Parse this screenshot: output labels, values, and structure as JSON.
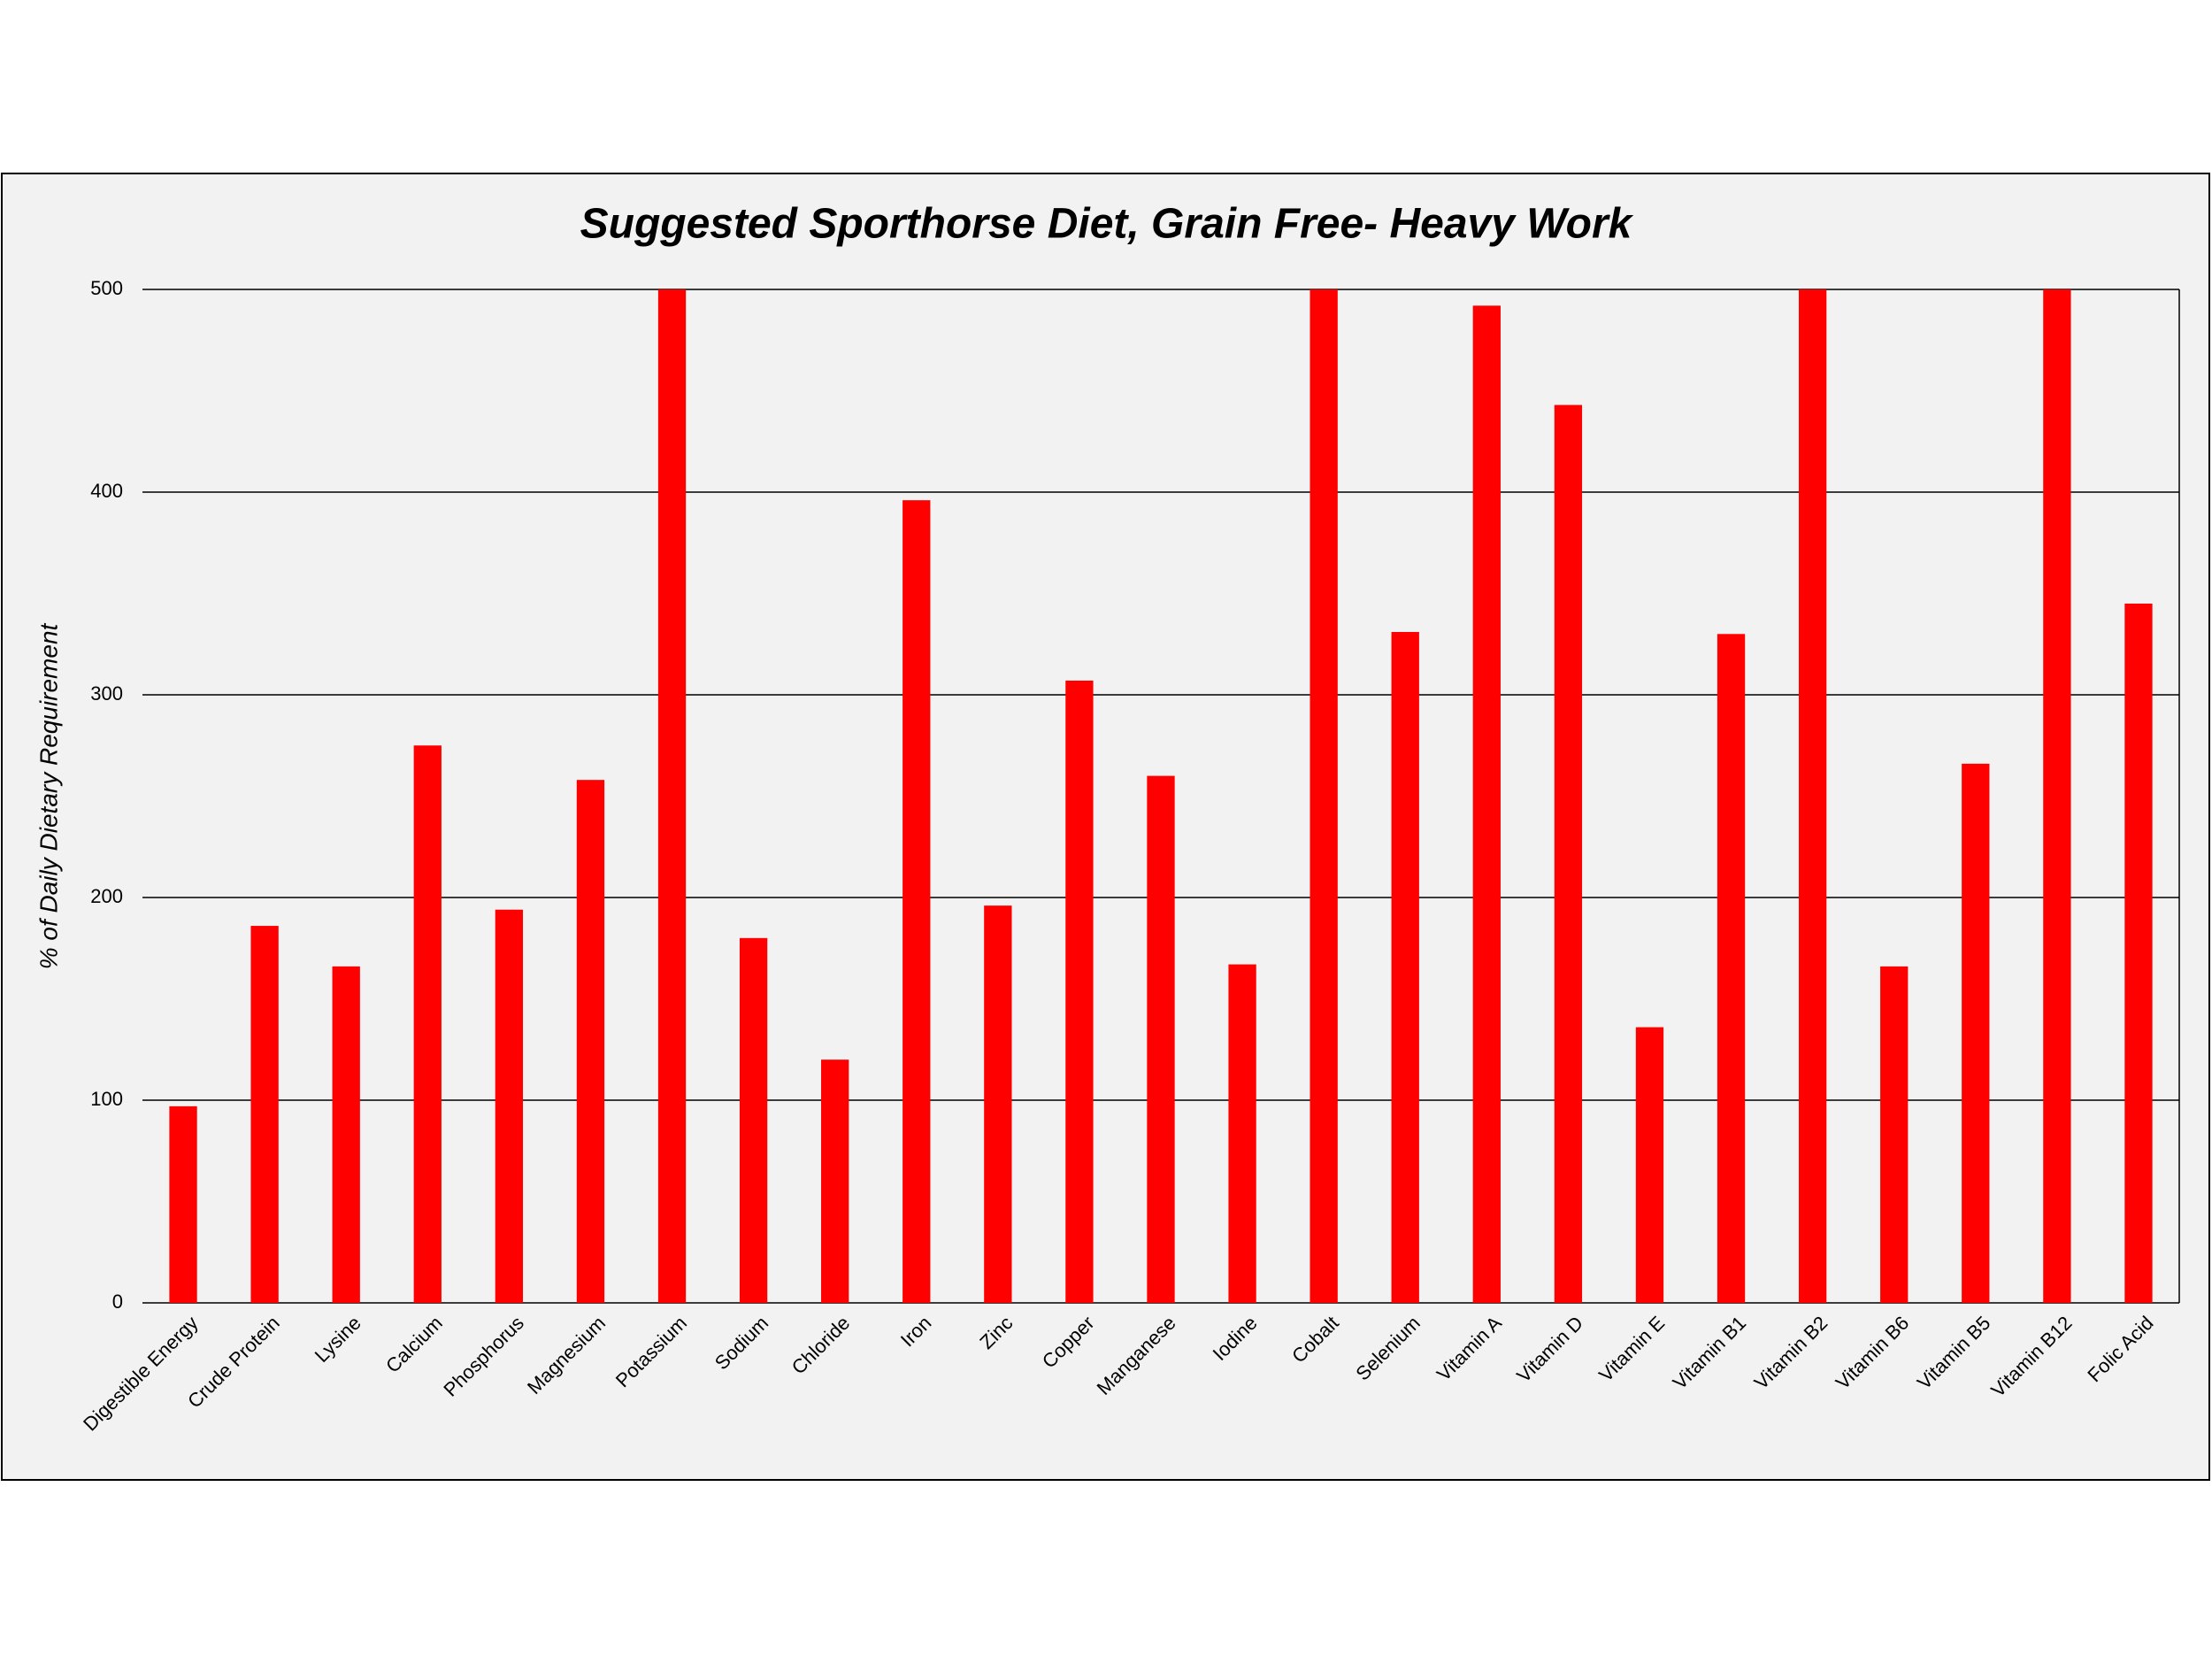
{
  "chart_data": {
    "type": "bar",
    "title": "Suggested Sporthorse Diet, Grain Free- Heavy Work",
    "y_label": "% of Daily Dietary Requirement",
    "categories": [
      "Digestible Energy",
      "Crude Protein",
      "Lysine",
      "Calcium",
      "Phosphorus",
      "Magnesium",
      "Potassium",
      "Sodium",
      "Chloride",
      "Iron",
      "Zinc",
      "Copper",
      "Manganese",
      "Iodine",
      "Cobalt",
      "Selenium",
      "Vitamin A",
      "Vitamin D",
      "Vitamin E",
      "Vitamin B1",
      "Vitamin B2",
      "Vitamin B6",
      "Vitamin B5",
      "Vitamin B12",
      "Folic Acid"
    ],
    "values": [
      97,
      186,
      166,
      275,
      194,
      258,
      500,
      180,
      120,
      396,
      196,
      307,
      260,
      167,
      500,
      331,
      492,
      443,
      136,
      330,
      500,
      166,
      266,
      500,
      345
    ],
    "color": "#ff0000",
    "ylim": [
      0,
      500
    ],
    "yticks": [
      0,
      100,
      200,
      300,
      400,
      500
    ],
    "grid": true
  }
}
